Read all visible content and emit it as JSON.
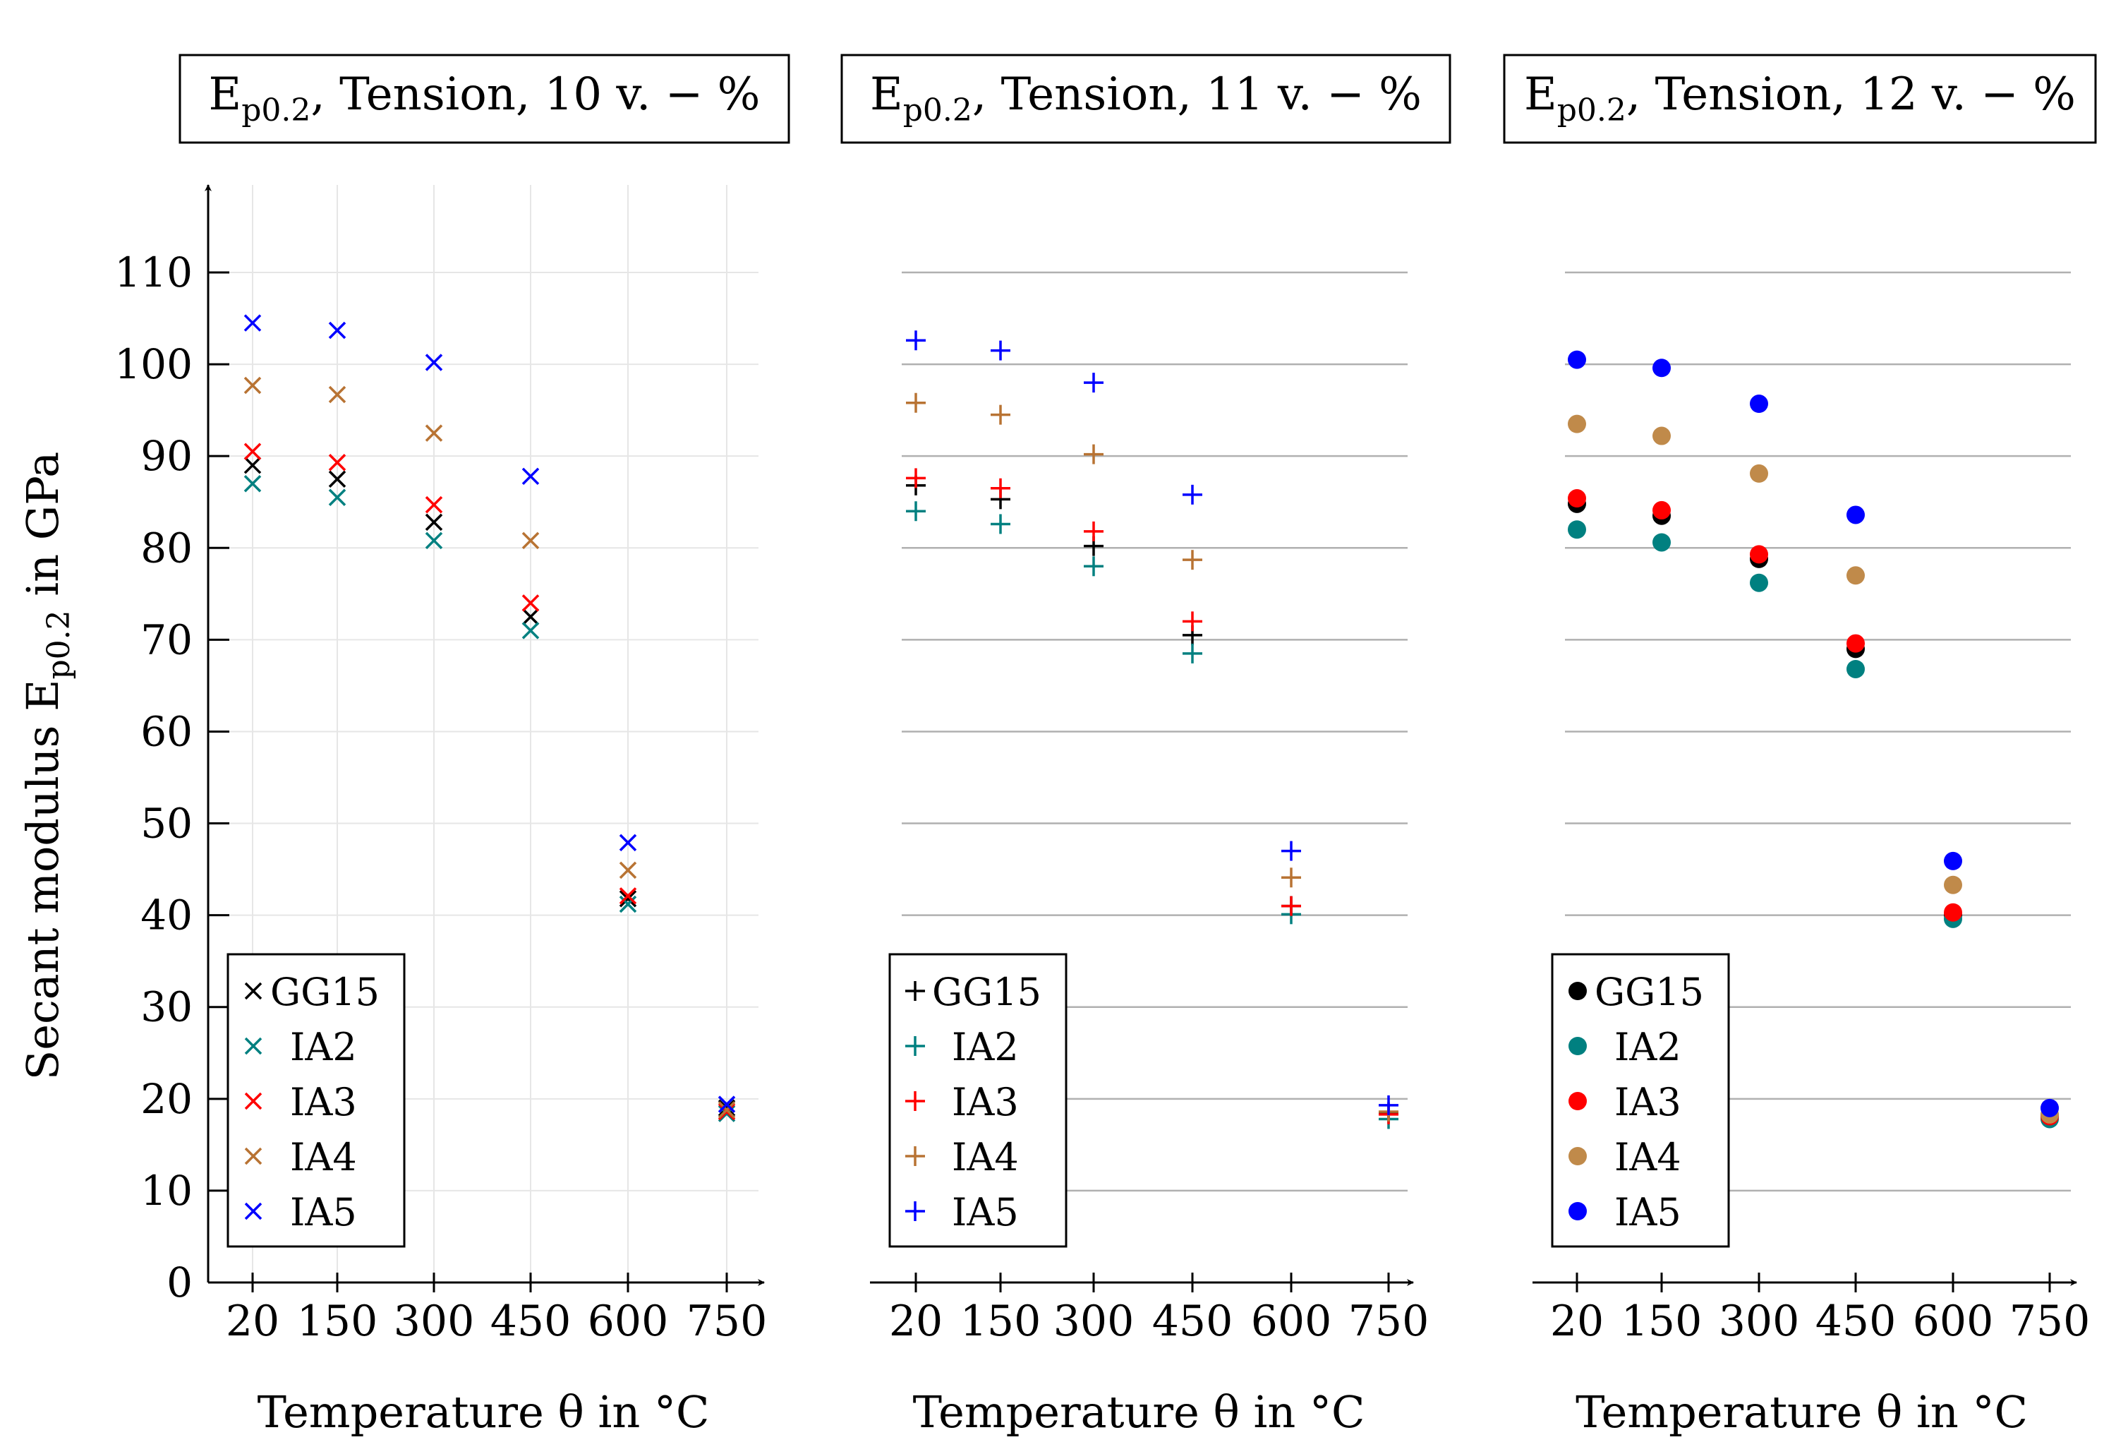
{
  "chart_data": [
    {
      "type": "scatter",
      "title_main": "E",
      "title_sub": "p0.2",
      "title_rest": ", Tension, 10 v. − %",
      "marker": "x",
      "grid": "light-vertical-and-horizontal",
      "xlabel": "Temperature θ in °C",
      "ylabel_main": "Secant modulus E",
      "ylabel_sub": "p0.2",
      "ylabel_rest": " in GPa",
      "ylim": [
        0,
        118
      ],
      "yticks": [
        "0",
        "10",
        "20",
        "30",
        "40",
        "50",
        "60",
        "70",
        "80",
        "90",
        "100",
        "110"
      ],
      "categories": [
        "20",
        "150",
        "300",
        "450",
        "600",
        "750"
      ],
      "legend_position": "bottom-left",
      "series": [
        {
          "name": "GG15",
          "color": "#000000",
          "values": [
            89,
            87.5,
            82.8,
            72.5,
            41.8,
            19.0
          ]
        },
        {
          "name": "IA2",
          "color": "#008080",
          "values": [
            87,
            85.5,
            80.8,
            71.0,
            41.2,
            18.4
          ]
        },
        {
          "name": "IA3",
          "color": "#ff0000",
          "values": [
            90.5,
            89.3,
            84.7,
            74.0,
            42.1,
            18.6
          ]
        },
        {
          "name": "IA4",
          "color": "#b87333",
          "values": [
            97.7,
            96.7,
            92.5,
            80.8,
            44.9,
            18.8
          ]
        },
        {
          "name": "IA5",
          "color": "#0000ff",
          "values": [
            104.5,
            103.7,
            100.2,
            87.8,
            47.9,
            19.4
          ]
        }
      ]
    },
    {
      "type": "scatter",
      "title_main": "E",
      "title_sub": "p0.2",
      "title_rest": ", Tension, 11 v. − %",
      "marker": "plus",
      "grid": "gray-horizontal",
      "xlabel": "Temperature θ in °C",
      "ylim": [
        0,
        118
      ],
      "categories": [
        "20",
        "150",
        "300",
        "450",
        "600",
        "750"
      ],
      "legend_position": "bottom-left",
      "series": [
        {
          "name": "GG15",
          "color": "#000000",
          "values": [
            86.8,
            85.3,
            80.2,
            70.5,
            41.0,
            18.5
          ]
        },
        {
          "name": "IA2",
          "color": "#008080",
          "values": [
            84.0,
            82.6,
            78.0,
            68.5,
            40.1,
            17.8
          ]
        },
        {
          "name": "IA3",
          "color": "#ff0000",
          "values": [
            87.6,
            86.5,
            81.8,
            72.0,
            41.0,
            18.3
          ]
        },
        {
          "name": "IA4",
          "color": "#b87333",
          "values": [
            95.8,
            94.5,
            90.2,
            78.7,
            44.1,
            18.6
          ]
        },
        {
          "name": "IA5",
          "color": "#0000ff",
          "values": [
            102.6,
            101.5,
            98.0,
            85.8,
            47.0,
            19.3
          ]
        }
      ]
    },
    {
      "type": "scatter",
      "title_main": "E",
      "title_sub": "p0.2",
      "title_rest": ", Tension, 12 v. − %",
      "marker": "dot",
      "grid": "gray-horizontal",
      "xlabel": "Temperature θ in °C",
      "ylim": [
        0,
        118
      ],
      "categories": [
        "20",
        "150",
        "300",
        "450",
        "600",
        "750"
      ],
      "legend_position": "bottom-left",
      "series": [
        {
          "name": "GG15",
          "color": "#000000",
          "values": [
            84.8,
            83.5,
            78.8,
            69.0,
            40.0,
            18.2
          ]
        },
        {
          "name": "IA2",
          "color": "#008080",
          "values": [
            82.0,
            80.6,
            76.2,
            66.8,
            39.6,
            17.8
          ]
        },
        {
          "name": "IA3",
          "color": "#ff0000",
          "values": [
            85.4,
            84.1,
            79.3,
            69.6,
            40.3,
            18.1
          ]
        },
        {
          "name": "IA4",
          "color": "#c08a4a",
          "values": [
            93.5,
            92.2,
            88.1,
            77.0,
            43.3,
            18.3
          ]
        },
        {
          "name": "IA5",
          "color": "#0000ff",
          "values": [
            100.5,
            99.6,
            95.7,
            83.6,
            45.9,
            19.0
          ]
        }
      ]
    }
  ]
}
